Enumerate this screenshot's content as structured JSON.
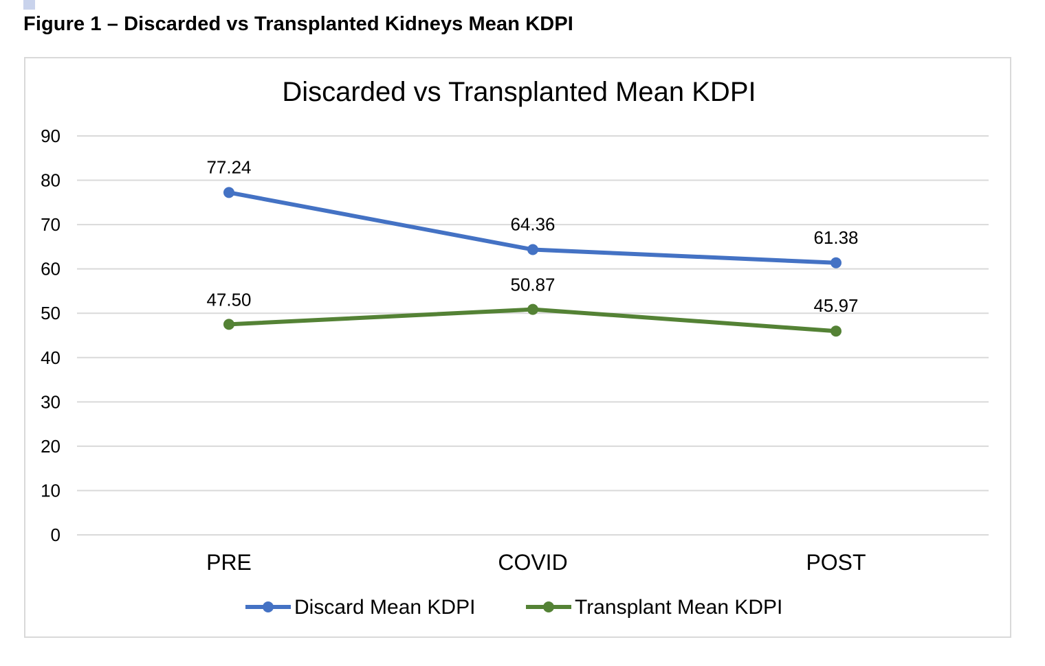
{
  "figure_caption": "Figure 1 – Discarded vs Transplanted Kidneys Mean KDPI",
  "chart_data": {
    "type": "line",
    "title": "Discarded vs Transplanted Mean KDPI",
    "xlabel": "",
    "ylabel": "",
    "categories": [
      "PRE",
      "COVID",
      "POST"
    ],
    "ylim": [
      0,
      90
    ],
    "yticks": [
      0,
      10,
      20,
      30,
      40,
      50,
      60,
      70,
      80,
      90
    ],
    "grid": true,
    "legend_position": "bottom",
    "series": [
      {
        "name": "Discard Mean KDPI",
        "values": [
          77.24,
          64.36,
          61.38
        ],
        "labels": [
          "77.24",
          "64.36",
          "61.38"
        ],
        "color": "#4472c4"
      },
      {
        "name": "Transplant Mean KDPI",
        "values": [
          47.5,
          50.87,
          45.97
        ],
        "labels": [
          "47.50",
          "50.87",
          "45.97"
        ],
        "color": "#548235"
      }
    ]
  }
}
